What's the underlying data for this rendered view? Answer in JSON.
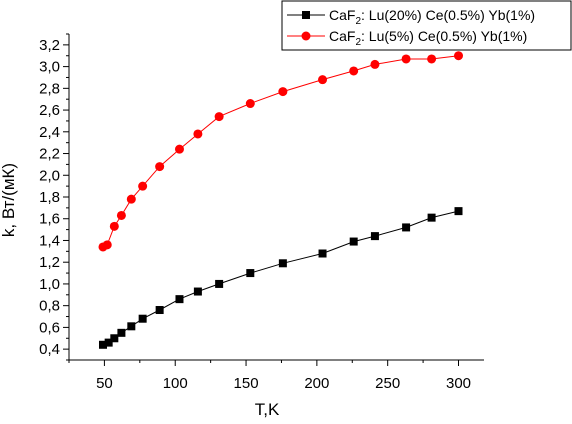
{
  "chart_data": {
    "type": "scatter",
    "xlabel": "T,K",
    "ylabel": "k, Вт/(мК)",
    "xlim": [
      25,
      318
    ],
    "ylim": [
      0.3,
      3.3
    ],
    "x_ticks": [
      "50",
      "100",
      "150",
      "200",
      "250",
      "300"
    ],
    "y_ticks": [
      "0,4",
      "0,6",
      "0,8",
      "1,0",
      "1,2",
      "1,4",
      "1,6",
      "1,8",
      "2,0",
      "2,2",
      "2,4",
      "2,6",
      "2,8",
      "3,0",
      "3,2"
    ],
    "legend_position": "top-right",
    "series": [
      {
        "name": "CaF2: Lu(20%) Ce(0.5%) Yb(1%)",
        "legend_main": "CaF",
        "legend_sub": "2",
        "legend_rest": ": Lu(20%) Ce(0.5%) Yb(1%)",
        "color": "#000000",
        "marker": "square",
        "x": [
          49,
          53,
          57,
          62,
          69,
          77,
          89,
          103,
          116,
          131,
          153,
          176,
          204,
          226,
          241,
          263,
          281,
          300
        ],
        "y": [
          0.44,
          0.46,
          0.5,
          0.55,
          0.61,
          0.68,
          0.76,
          0.86,
          0.93,
          1.0,
          1.1,
          1.19,
          1.28,
          1.39,
          1.44,
          1.52,
          1.61,
          1.67
        ]
      },
      {
        "name": "CaF2: Lu(5%) Ce(0.5%) Yb(1%)",
        "legend_main": "CaF",
        "legend_sub": "2",
        "legend_rest": ": Lu(5%) Ce(0.5%) Yb(1%)",
        "color": "#ff0000",
        "marker": "circle",
        "x": [
          49,
          52,
          57,
          62,
          69,
          77,
          89,
          103,
          116,
          131,
          153,
          176,
          204,
          226,
          241,
          263,
          281,
          300
        ],
        "y": [
          1.34,
          1.36,
          1.53,
          1.63,
          1.78,
          1.9,
          2.08,
          2.24,
          2.38,
          2.54,
          2.66,
          2.77,
          2.88,
          2.96,
          3.02,
          3.07,
          3.07,
          3.1
        ]
      }
    ]
  }
}
